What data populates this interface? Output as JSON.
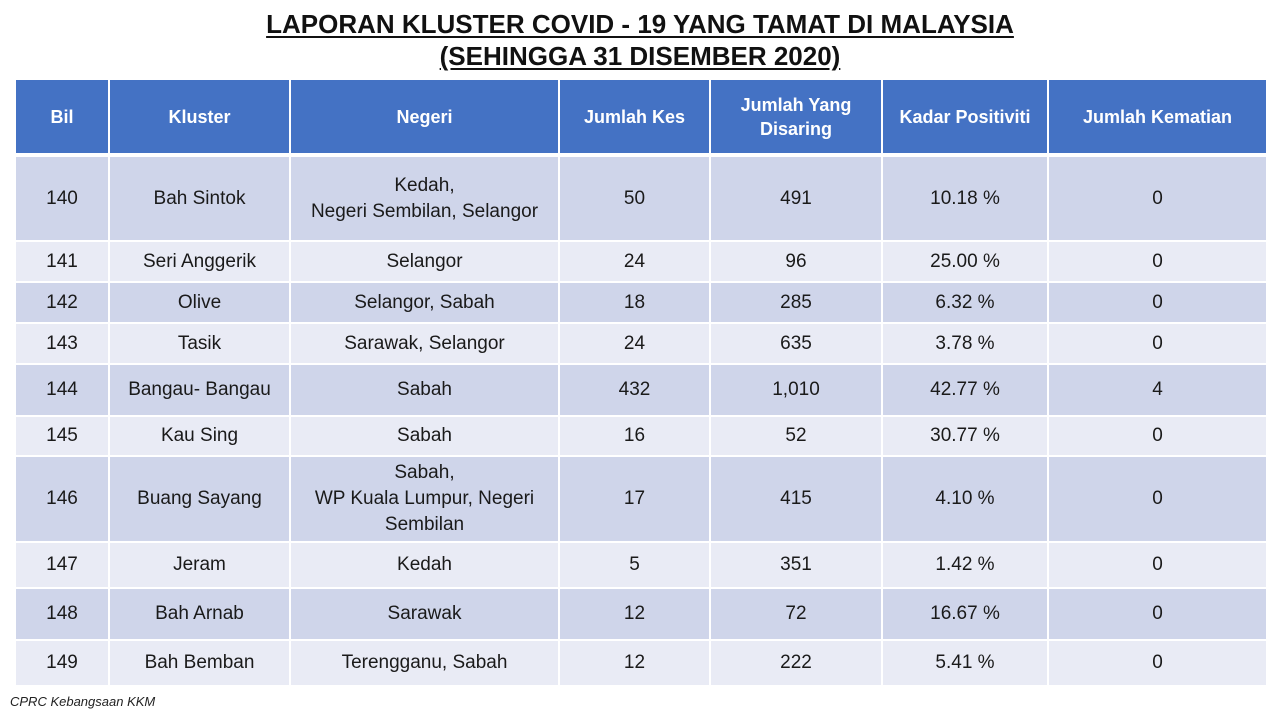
{
  "title": {
    "line1": "LAPORAN KLUSTER COVID - 19 YANG TAMAT DI MALAYSIA",
    "line2": "(SEHINGGA 31 DISEMBER 2020)"
  },
  "table": {
    "headers": {
      "bil": "Bil",
      "kluster": "Kluster",
      "negeri": "Negeri",
      "jumlah_kes": "Jumlah Kes",
      "jumlah_disaring_1": "Jumlah Yang",
      "jumlah_disaring_2": "Disaring",
      "kadar_positiviti": "Kadar Positiviti",
      "jumlah_kematian": "Jumlah Kematian"
    },
    "rows": [
      {
        "bil": "140",
        "kluster": "Bah Sintok",
        "negeri_1": "Kedah,",
        "negeri_2": "Negeri Sembilan, Selangor",
        "negeri_3": "",
        "kes": "50",
        "disaring": "491",
        "positiviti": "10.18 %",
        "kematian": "0"
      },
      {
        "bil": "141",
        "kluster": "Seri Anggerik",
        "negeri_1": "Selangor",
        "negeri_2": "",
        "negeri_3": "",
        "kes": "24",
        "disaring": "96",
        "positiviti": "25.00 %",
        "kematian": "0"
      },
      {
        "bil": "142",
        "kluster": "Olive",
        "negeri_1": "Selangor, Sabah",
        "negeri_2": "",
        "negeri_3": "",
        "kes": "18",
        "disaring": "285",
        "positiviti": "6.32 %",
        "kematian": "0"
      },
      {
        "bil": "143",
        "kluster": "Tasik",
        "negeri_1": "Sarawak, Selangor",
        "negeri_2": "",
        "negeri_3": "",
        "kes": "24",
        "disaring": "635",
        "positiviti": "3.78 %",
        "kematian": "0"
      },
      {
        "bil": "144",
        "kluster": "Bangau- Bangau",
        "negeri_1": "Sabah",
        "negeri_2": "",
        "negeri_3": "",
        "kes": "432",
        "disaring": "1,010",
        "positiviti": "42.77 %",
        "kematian": "4"
      },
      {
        "bil": "145",
        "kluster": "Kau Sing",
        "negeri_1": "Sabah",
        "negeri_2": "",
        "negeri_3": "",
        "kes": "16",
        "disaring": "52",
        "positiviti": "30.77 %",
        "kematian": "0"
      },
      {
        "bil": "146",
        "kluster": "Buang Sayang",
        "negeri_1": "Sabah,",
        "negeri_2": "WP Kuala Lumpur, Negeri",
        "negeri_3": "Sembilan",
        "kes": "17",
        "disaring": "415",
        "positiviti": "4.10 %",
        "kematian": "0"
      },
      {
        "bil": "147",
        "kluster": "Jeram",
        "negeri_1": "Kedah",
        "negeri_2": "",
        "negeri_3": "",
        "kes": "5",
        "disaring": "351",
        "positiviti": "1.42 %",
        "kematian": "0"
      },
      {
        "bil": "148",
        "kluster": "Bah Arnab",
        "negeri_1": "Sarawak",
        "negeri_2": "",
        "negeri_3": "",
        "kes": "12",
        "disaring": "72",
        "positiviti": "16.67 %",
        "kematian": "0"
      },
      {
        "bil": "149",
        "kluster": "Bah Bemban",
        "negeri_1": "Terengganu, Sabah",
        "negeri_2": "",
        "negeri_3": "",
        "kes": "12",
        "disaring": "222",
        "positiviti": "5.41 %",
        "kematian": "0"
      }
    ]
  },
  "footer": {
    "source": "CPRC Kebangsaan KKM"
  },
  "colors": {
    "header_bg": "#4472c4",
    "row_dark": "#cfd5ea",
    "row_light": "#e9ebf5"
  }
}
